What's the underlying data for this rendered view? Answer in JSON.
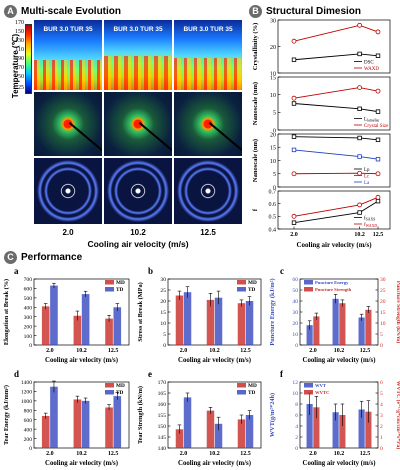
{
  "sections": {
    "A": {
      "badge": "A",
      "title": "Multi-scale Evolution"
    },
    "B": {
      "badge": "B",
      "title": "Structural Dimesion"
    },
    "C": {
      "badge": "C",
      "title": "Performance"
    }
  },
  "panelA": {
    "ylabel": "Temperature (℃)",
    "colorbar_ticks": [
      "170",
      "150",
      "130",
      "110",
      "90",
      "70",
      "50",
      "25"
    ],
    "columns": [
      {
        "label": "BUR 3.0 TUR 35",
        "x": "2.0"
      },
      {
        "label": "BUR 3.0 TUR 35",
        "x": "10.2"
      },
      {
        "label": "BUR 3.0 TUR 35",
        "x": "12.5"
      }
    ],
    "xlabel": "Cooling air velocity (m/s)"
  },
  "chart_data": [
    {
      "id": "B1",
      "type": "line",
      "x": [
        2.0,
        10.2,
        12.5
      ],
      "ylabel": "Crystallinity (%)",
      "ylim": [
        10,
        30
      ],
      "yticks": [
        "10",
        "20",
        "30"
      ],
      "series": [
        {
          "name": "DSC",
          "color": "#000000",
          "values": [
            15.0,
            17.2,
            16.5
          ]
        },
        {
          "name": "WAXD",
          "color": "#c00000",
          "values": [
            22.0,
            28.0,
            25.5
          ]
        }
      ]
    },
    {
      "id": "B2",
      "type": "line",
      "x": [
        2.0,
        10.2,
        12.5
      ],
      "ylabel": "Nanoscale (nm)",
      "ylim": [
        0,
        15
      ],
      "yticks": [
        "0",
        "5",
        "10",
        "15"
      ],
      "series": [
        {
          "name": "L",
          "sub": "lamellar",
          "color": "#000000",
          "values": [
            7.5,
            6.0,
            5.2
          ]
        },
        {
          "name": "Crystal Size",
          "color": "#c00000",
          "values": [
            9.0,
            12.0,
            11.0
          ]
        }
      ]
    },
    {
      "id": "B3",
      "type": "line",
      "x": [
        2.0,
        10.2,
        12.5
      ],
      "ylabel": "Nanoscale (nm)",
      "ylim": [
        0,
        20
      ],
      "yticks": [
        "0",
        "5",
        "10",
        "15",
        "20"
      ],
      "series": [
        {
          "name": "Lp",
          "color": "#000000",
          "values": [
            19.0,
            18.5,
            17.8
          ]
        },
        {
          "name": "Lc",
          "color": "#c00000",
          "values": [
            5.0,
            5.2,
            5.0
          ]
        },
        {
          "name": "La",
          "color": "#1f3fbf",
          "values": [
            14.0,
            11.5,
            10.5
          ]
        }
      ]
    },
    {
      "id": "B4",
      "type": "line",
      "x": [
        2.0,
        10.2,
        12.5
      ],
      "xlabel": "Cooling air velocity (m/s)",
      "xticks": [
        "2.0",
        "10.2",
        "12.5"
      ],
      "ylabel": "f",
      "ylim": [
        0.4,
        0.7
      ],
      "yticks": [
        "0.4",
        "0.5",
        "0.6",
        "0.7"
      ],
      "series": [
        {
          "name": "f",
          "sub": "SAXS",
          "color": "#000000",
          "values": [
            0.45,
            0.53,
            0.62
          ]
        },
        {
          "name": "f",
          "sub": "WAXD",
          "color": "#c00000",
          "values": [
            0.5,
            0.59,
            0.65
          ]
        }
      ]
    },
    {
      "id": "a",
      "type": "bar",
      "categories": [
        "2.0",
        "10.2",
        "12.5"
      ],
      "ylabel": "Elongation at Break (%)",
      "xlabel": "Cooling air velocity (m/s)",
      "ylim": [
        0,
        700
      ],
      "yticks": [
        "0",
        "100",
        "200",
        "300",
        "400",
        "500",
        "600",
        "700"
      ],
      "series": [
        {
          "name": "MD",
          "color": "#c9302c",
          "values": [
            410,
            310,
            280
          ],
          "err": [
            30,
            50,
            35
          ]
        },
        {
          "name": "TD",
          "color": "#3b4cc0",
          "values": [
            630,
            540,
            400
          ],
          "err": [
            25,
            30,
            40
          ]
        }
      ]
    },
    {
      "id": "b",
      "type": "bar",
      "categories": [
        "2.0",
        "10.2",
        "12.5"
      ],
      "ylabel": "Stress at Break (MPa)",
      "xlabel": "Cooling air velocity (m/s)",
      "ylim": [
        0,
        30
      ],
      "yticks": [
        "0",
        "5",
        "10",
        "15",
        "20",
        "25",
        "30"
      ],
      "series": [
        {
          "name": "MD",
          "color": "#c9302c",
          "values": [
            22.5,
            20.5,
            19.0
          ],
          "err": [
            2,
            3,
            1.5
          ]
        },
        {
          "name": "TD",
          "color": "#3b4cc0",
          "values": [
            24.0,
            21.5,
            20.0
          ],
          "err": [
            2.5,
            3,
            2
          ]
        }
      ]
    },
    {
      "id": "c",
      "type": "bar",
      "categories": [
        "2.0",
        "10.2",
        "12.5"
      ],
      "ylabel": "Puncture Energy (kJ/m²)",
      "y2label": "Puncture Strength (kN/m)",
      "xlabel": "Cooling air velocity (m/s)",
      "ylim": [
        0,
        60
      ],
      "yticks": [
        "0",
        "10",
        "20",
        "30",
        "40",
        "50",
        "60"
      ],
      "y2lim": [
        0,
        30
      ],
      "y2ticks": [
        "0",
        "5",
        "10",
        "15",
        "20",
        "25",
        "30"
      ],
      "series": [
        {
          "name": "Puncture Energy",
          "color": "#3b4cc0",
          "axis": "left",
          "values": [
            18,
            42,
            25
          ],
          "err": [
            4,
            4,
            3
          ]
        },
        {
          "name": "Puncture Strength",
          "color": "#c9302c",
          "axis": "right",
          "values": [
            13,
            19,
            16
          ],
          "err": [
            1.5,
            1.5,
            1.5
          ]
        }
      ]
    },
    {
      "id": "d",
      "type": "bar",
      "categories": [
        "2.0",
        "10.2",
        "12.5"
      ],
      "ylabel": "Tear Energy (kJ/mm²)",
      "xlabel": "Cooling air velocity (m/s)",
      "ylim": [
        0,
        1400
      ],
      "yticks": [
        "0",
        "200",
        "400",
        "600",
        "800",
        "1000",
        "1200",
        "1400"
      ],
      "series": [
        {
          "name": "MD",
          "color": "#c9302c",
          "values": [
            680,
            1030,
            860
          ],
          "err": [
            60,
            70,
            60
          ]
        },
        {
          "name": "TD",
          "color": "#3b4cc0",
          "values": [
            1300,
            1000,
            1100
          ],
          "err": [
            120,
            60,
            80
          ]
        }
      ]
    },
    {
      "id": "e",
      "type": "bar",
      "categories": [
        "2.0",
        "10.2",
        "12.5"
      ],
      "ylabel": "Tear Strength (kN/m)",
      "xlabel": "Cooling air velocity (m/s)",
      "ylim": [
        140,
        170
      ],
      "yticks": [
        "140",
        "145",
        "150",
        "155",
        "160",
        "165",
        "170"
      ],
      "series": [
        {
          "name": "MD",
          "color": "#c9302c",
          "values": [
            148.5,
            157.0,
            153.0
          ],
          "err": [
            2,
            1.5,
            2
          ]
        },
        {
          "name": "TD",
          "color": "#3b4cc0",
          "values": [
            163.0,
            151.0,
            155.0
          ],
          "err": [
            2,
            3,
            2
          ]
        }
      ]
    },
    {
      "id": "f",
      "type": "bar",
      "categories": [
        "2.0",
        "10.2",
        "12.5"
      ],
      "ylabel": "WVT(g/m²*24h)",
      "y2label": "WVTC (e⁻¹²g*cm/cm²*s*Pa)",
      "xlabel": "Cooling air velocity (m/s)",
      "ylim": [
        0,
        12
      ],
      "yticks": [
        "0",
        "2",
        "4",
        "6",
        "8",
        "10",
        "12"
      ],
      "y2lim": [
        0,
        6
      ],
      "y2ticks": [
        "0",
        "1",
        "2",
        "3",
        "4",
        "5",
        "6"
      ],
      "series": [
        {
          "name": "WVT",
          "color": "#3b4cc0",
          "axis": "left",
          "values": [
            8.0,
            6.5,
            7.0
          ],
          "err": [
            2,
            1.5,
            1.5
          ]
        },
        {
          "name": "WVTC",
          "color": "#c9302c",
          "axis": "right",
          "values": [
            3.7,
            3.0,
            3.3
          ],
          "err": [
            1,
            1,
            1
          ]
        }
      ]
    }
  ]
}
